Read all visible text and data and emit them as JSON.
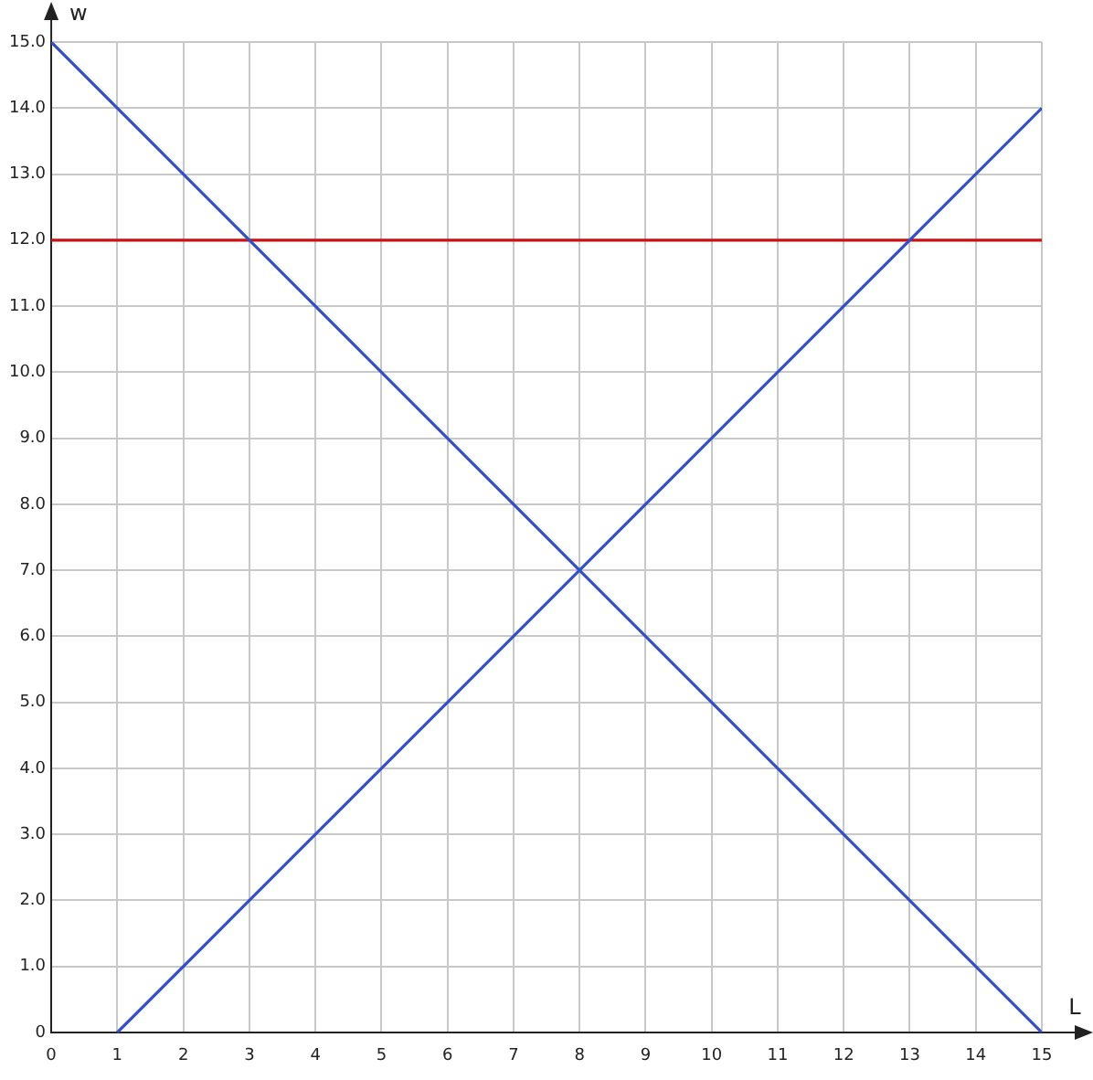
{
  "chart_data": {
    "type": "line",
    "xlabel": "L",
    "ylabel": "w",
    "xlim": [
      0,
      15
    ],
    "xticks": [
      0,
      1,
      2,
      3,
      4,
      5,
      6,
      7,
      8,
      9,
      10,
      11,
      12,
      13,
      14,
      15
    ],
    "ylim": [
      0,
      15
    ],
    "yticks": [
      {
        "value": 0,
        "label": "0"
      },
      {
        "value": 1,
        "label": "1.0"
      },
      {
        "value": 2,
        "label": "2.0"
      },
      {
        "value": 3,
        "label": "3.0"
      },
      {
        "value": 4,
        "label": "4.0"
      },
      {
        "value": 5,
        "label": "5.0"
      },
      {
        "value": 6,
        "label": "6.0"
      },
      {
        "value": 7,
        "label": "7.0"
      },
      {
        "value": 8,
        "label": "8.0"
      },
      {
        "value": 9,
        "label": "9.0"
      },
      {
        "value": 10,
        "label": "10.0"
      },
      {
        "value": 11,
        "label": "11.0"
      },
      {
        "value": 12,
        "label": "12.0"
      },
      {
        "value": 13,
        "label": "13.0"
      },
      {
        "value": 14,
        "label": "14.0"
      },
      {
        "value": 15,
        "label": "15.0"
      }
    ],
    "series": [
      {
        "color": "#3050c8",
        "x": [
          0,
          15
        ],
        "values": [
          15,
          0
        ]
      },
      {
        "color": "#3050c8",
        "x": [
          1,
          15
        ],
        "values": [
          0,
          14
        ]
      }
    ],
    "ref_lines": [
      {
        "axis": "y",
        "value": 12,
        "color": "#cc1111"
      }
    ],
    "grid": true,
    "legend": false,
    "marker": "none",
    "line_style": "solid"
  }
}
